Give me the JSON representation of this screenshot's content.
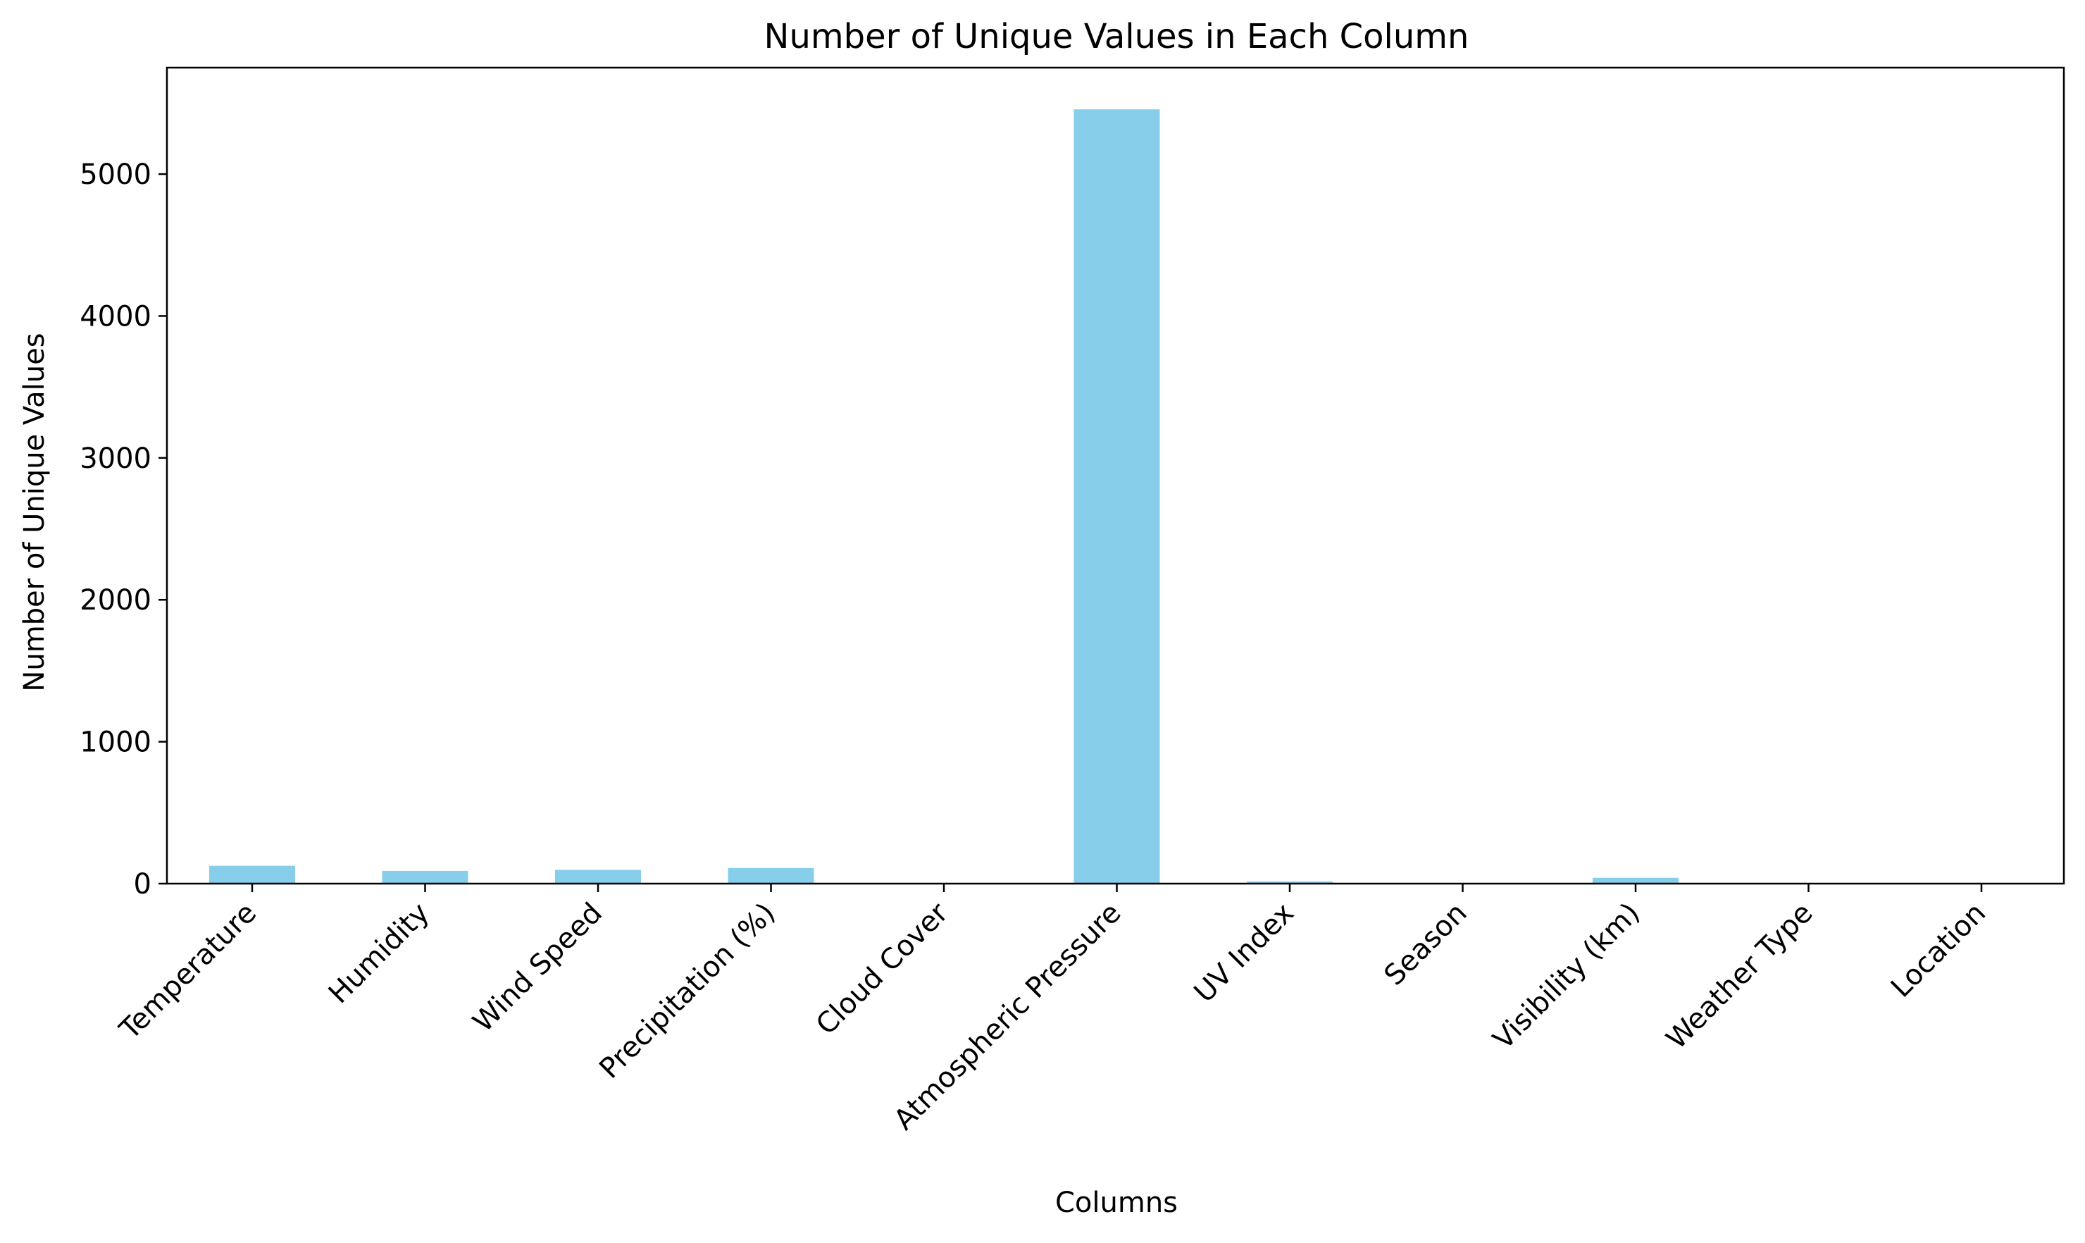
{
  "chart_data": {
    "type": "bar",
    "title": "Number of Unique Values in Each Column",
    "xlabel": "Columns",
    "ylabel": "Number of Unique Values",
    "categories": [
      "Temperature",
      "Humidity",
      "Wind Speed",
      "Precipitation (%)",
      "Cloud Cover",
      "Atmospheric Pressure",
      "UV Index",
      "Season",
      "Visibility (km)",
      "Weather Type",
      "Location"
    ],
    "values": [
      126,
      90,
      97,
      110,
      4,
      5456,
      15,
      4,
      41,
      4,
      3
    ],
    "ylim": [
      0,
      5750
    ],
    "yticks": [
      0,
      1000,
      2000,
      3000,
      4000,
      5000
    ],
    "grid": false,
    "legend": "none",
    "bar_color": "#87ceeb",
    "axis_color": "#000000"
  }
}
